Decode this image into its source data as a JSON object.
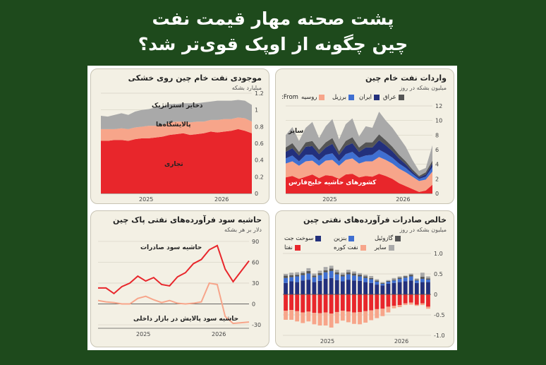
{
  "page": {
    "title_line1": "پشت صحنه مهار قیمت نفت",
    "title_line2": "چین چگونه از اوپک قوی‌تر شد؟"
  },
  "colors": {
    "background": "#1e4a1c",
    "red": "#e8262b",
    "salmon": "#f7a58a",
    "grey": "#a9a9a9",
    "navy": "#23307c",
    "blue": "#3f6fd1",
    "darkgrey": "#555555"
  },
  "panels": {
    "inventory": {
      "title": "موجودی نفت خام چین روی خشکی",
      "subtitle": "میلیارد بشکه",
      "labels": {
        "strategic": "ذخایر استراتژیک",
        "refineries": "پالایشگاه‌ها",
        "commercial": "تجاری"
      }
    },
    "imports": {
      "title": "واردات نفت خام چین",
      "subtitle": "میلیون بشکه در روز",
      "from_label": "From:",
      "legend": [
        "عراق",
        "ایران",
        "برزیل",
        "روسیه"
      ],
      "labels": {
        "other": "سایر",
        "gulf": "کشورهای حاشیه خلیج‌فارس"
      }
    },
    "margins": {
      "title": "حاشیه سود فرآورده‌های نفتی پاک چین",
      "subtitle": "دلار بر هر بشکه",
      "labels": {
        "export": "حاشیه سود صادرات",
        "domestic": "حاشیه سود پالایش در بازار داخلی"
      }
    },
    "exports": {
      "title": "خالص صادرات فرآورده‌های نفتی چین",
      "subtitle": "میلیون بشکه در روز",
      "legend": [
        "سوخت جت",
        "بنزین",
        "گازوئیل",
        "نفتا",
        "نفت کوره",
        "سایر"
      ]
    }
  },
  "chart_data": [
    {
      "type": "area",
      "title": "موجودی نفت خام چین روی خشکی",
      "subtitle": "میلیارد بشکه",
      "x_ticks": [
        "2025",
        "2026"
      ],
      "ylim": [
        0,
        1.2
      ],
      "y_ticks": [
        0,
        0.2,
        0.4,
        0.6,
        0.8,
        1.0,
        1.2
      ],
      "series": [
        {
          "name": "تجاری",
          "values": [
            0.63,
            0.63,
            0.64,
            0.64,
            0.63,
            0.65,
            0.66,
            0.66,
            0.67,
            0.68,
            0.7,
            0.71,
            0.72,
            0.7,
            0.71,
            0.72,
            0.74,
            0.73,
            0.74,
            0.75,
            0.77,
            0.75,
            0.72
          ]
        },
        {
          "name": "پالایشگاه‌ها",
          "values": [
            0.14,
            0.14,
            0.13,
            0.14,
            0.14,
            0.14,
            0.14,
            0.15,
            0.14,
            0.14,
            0.15,
            0.15,
            0.14,
            0.15,
            0.15,
            0.14,
            0.14,
            0.15,
            0.15,
            0.14,
            0.14,
            0.15,
            0.14
          ]
        },
        {
          "name": "ذخایر استراتژیک",
          "values": [
            0.16,
            0.15,
            0.17,
            0.18,
            0.17,
            0.19,
            0.2,
            0.2,
            0.22,
            0.22,
            0.22,
            0.21,
            0.22,
            0.23,
            0.22,
            0.23,
            0.22,
            0.23,
            0.22,
            0.22,
            0.21,
            0.21,
            0.2
          ]
        }
      ]
    },
    {
      "type": "area",
      "title": "واردات نفت خام چین",
      "subtitle": "میلیون بشکه در روز",
      "x_ticks": [
        "2025",
        "2026"
      ],
      "ylim": [
        0,
        12
      ],
      "y_ticks": [
        0,
        2,
        4,
        6,
        8,
        10,
        12
      ],
      "series": [
        {
          "name": "کشورهای حاشیه خلیج‌فارس",
          "values": [
            2.2,
            2.4,
            2.0,
            2.3,
            2.6,
            2.1,
            2.5,
            2.4,
            2.0,
            2.6,
            2.7,
            2.2,
            2.4,
            2.3,
            2.7,
            2.4,
            2.0,
            1.4,
            1.0,
            0.6,
            0.2,
            0.4,
            1.2
          ]
        },
        {
          "name": "روسیه",
          "values": [
            1.9,
            2.0,
            1.8,
            2.1,
            1.9,
            1.7,
            2.0,
            2.2,
            1.8,
            2.0,
            2.1,
            1.9,
            2.0,
            2.1,
            2.3,
            2.2,
            2.1,
            2.0,
            1.9,
            1.7,
            1.5,
            1.5,
            1.8
          ]
        },
        {
          "name": "برزیل",
          "values": [
            0.7,
            0.8,
            0.6,
            0.9,
            0.8,
            0.7,
            0.8,
            0.9,
            0.6,
            0.8,
            0.9,
            0.8,
            0.8,
            0.9,
            1.0,
            0.9,
            0.8,
            0.7,
            0.6,
            0.4,
            0.3,
            0.4,
            0.6
          ]
        },
        {
          "name": "ایران",
          "values": [
            0.9,
            1.0,
            0.8,
            1.1,
            1.2,
            0.9,
            1.0,
            1.3,
            0.9,
            1.1,
            1.2,
            0.8,
            1.1,
            1.0,
            1.3,
            1.1,
            0.9,
            0.7,
            0.5,
            0.3,
            0.2,
            0.3,
            0.5
          ]
        },
        {
          "name": "عراق",
          "values": [
            0.6,
            0.7,
            0.5,
            0.6,
            0.7,
            0.6,
            0.7,
            0.8,
            0.5,
            0.7,
            0.8,
            0.6,
            0.7,
            0.7,
            0.8,
            0.7,
            0.6,
            0.5,
            0.4,
            0.3,
            0.2,
            0.3,
            0.4
          ]
        },
        {
          "name": "سایر",
          "values": [
            1.7,
            2.2,
            1.5,
            2.0,
            2.6,
            1.6,
            2.2,
            2.6,
            1.6,
            2.3,
            2.6,
            1.5,
            2.2,
            2.0,
            3.1,
            2.7,
            2.6,
            2.4,
            2.0,
            1.3,
            0.7,
            0.6,
            2.1
          ]
        }
      ]
    },
    {
      "type": "line",
      "title": "حاشیه سود فرآورده‌های نفتی پاک چین",
      "subtitle": "دلار بر هر بشکه",
      "x_ticks": [
        "2025",
        "2026"
      ],
      "ylim": [
        -35,
        95
      ],
      "y_ticks": [
        -30,
        0,
        30,
        60,
        90
      ],
      "series": [
        {
          "name": "حاشیه سود صادرات",
          "color": "#e8262b",
          "values": [
            23,
            23,
            15,
            25,
            30,
            40,
            33,
            38,
            28,
            26,
            39,
            45,
            58,
            64,
            78,
            84,
            50,
            32,
            47,
            62
          ]
        },
        {
          "name": "حاشیه سود پالایش در بازار داخلی",
          "color": "#f7a58a",
          "values": [
            5,
            3,
            2,
            0,
            0,
            8,
            11,
            6,
            2,
            5,
            1,
            0,
            1,
            3,
            30,
            28,
            -18,
            -28,
            -27,
            -26
          ]
        }
      ]
    },
    {
      "type": "bar",
      "stacked": true,
      "title": "خالص صادرات فرآورده‌های نفتی چین",
      "subtitle": "میلیون بشکه در روز",
      "x_ticks": [
        "2025",
        "2026"
      ],
      "ylim": [
        -1.0,
        1.0
      ],
      "y_ticks": [
        -1.0,
        -0.5,
        0,
        0.5,
        1.0
      ],
      "series": [
        {
          "name": "سوخت جت",
          "values": [
            0.28,
            0.32,
            0.3,
            0.34,
            0.36,
            0.3,
            0.33,
            0.38,
            0.4,
            0.35,
            0.32,
            0.36,
            0.34,
            0.33,
            0.3,
            0.28,
            0.24,
            0.22,
            0.26,
            0.28,
            0.3,
            0.32,
            0.34,
            0.28,
            0.3,
            0.3
          ]
        },
        {
          "name": "بنزین",
          "values": [
            0.12,
            0.1,
            0.14,
            0.13,
            0.15,
            0.12,
            0.14,
            0.16,
            0.17,
            0.14,
            0.12,
            0.13,
            0.12,
            0.11,
            0.1,
            0.09,
            0.07,
            0.04,
            0.05,
            0.06,
            0.08,
            0.09,
            0.1,
            0.06,
            0.08,
            0.06
          ]
        },
        {
          "name": "گازوئیل",
          "values": [
            0.06,
            0.05,
            0.04,
            0.05,
            0.06,
            0.04,
            0.05,
            0.05,
            0.06,
            0.05,
            0.04,
            0.05,
            0.05,
            0.04,
            0.04,
            0.03,
            0.03,
            0.02,
            0.02,
            0.02,
            0.03,
            0.03,
            0.04,
            0.02,
            0.05,
            0.03
          ]
        },
        {
          "name": "نفتا",
          "values": [
            -0.4,
            -0.38,
            -0.41,
            -0.44,
            -0.42,
            -0.45,
            -0.46,
            -0.44,
            -0.47,
            -0.43,
            -0.4,
            -0.42,
            -0.44,
            -0.43,
            -0.41,
            -0.39,
            -0.36,
            -0.35,
            -0.3,
            -0.28,
            -0.26,
            -0.22,
            -0.2,
            -0.25,
            -0.22,
            -0.3
          ]
        },
        {
          "name": "نفت کوره",
          "values": [
            -0.22,
            -0.24,
            -0.25,
            -0.26,
            -0.24,
            -0.28,
            -0.3,
            -0.32,
            -0.34,
            -0.28,
            -0.24,
            -0.26,
            -0.28,
            -0.3,
            -0.28,
            -0.24,
            -0.22,
            -0.18,
            -0.14,
            -0.06,
            -0.05,
            -0.04,
            -0.05,
            -0.03,
            -0.04,
            -0.05
          ]
        },
        {
          "name": "سایر",
          "values": [
            0.04,
            0.06,
            0.06,
            0.04,
            0.07,
            0.05,
            0.06,
            0.08,
            0.07,
            0.06,
            0.05,
            0.06,
            0.05,
            0.04,
            0.04,
            0.05,
            0.03,
            0.02,
            0.02,
            0.04,
            0.03,
            0.02,
            0.03,
            0.03,
            0.1,
            0.05
          ]
        }
      ]
    }
  ]
}
